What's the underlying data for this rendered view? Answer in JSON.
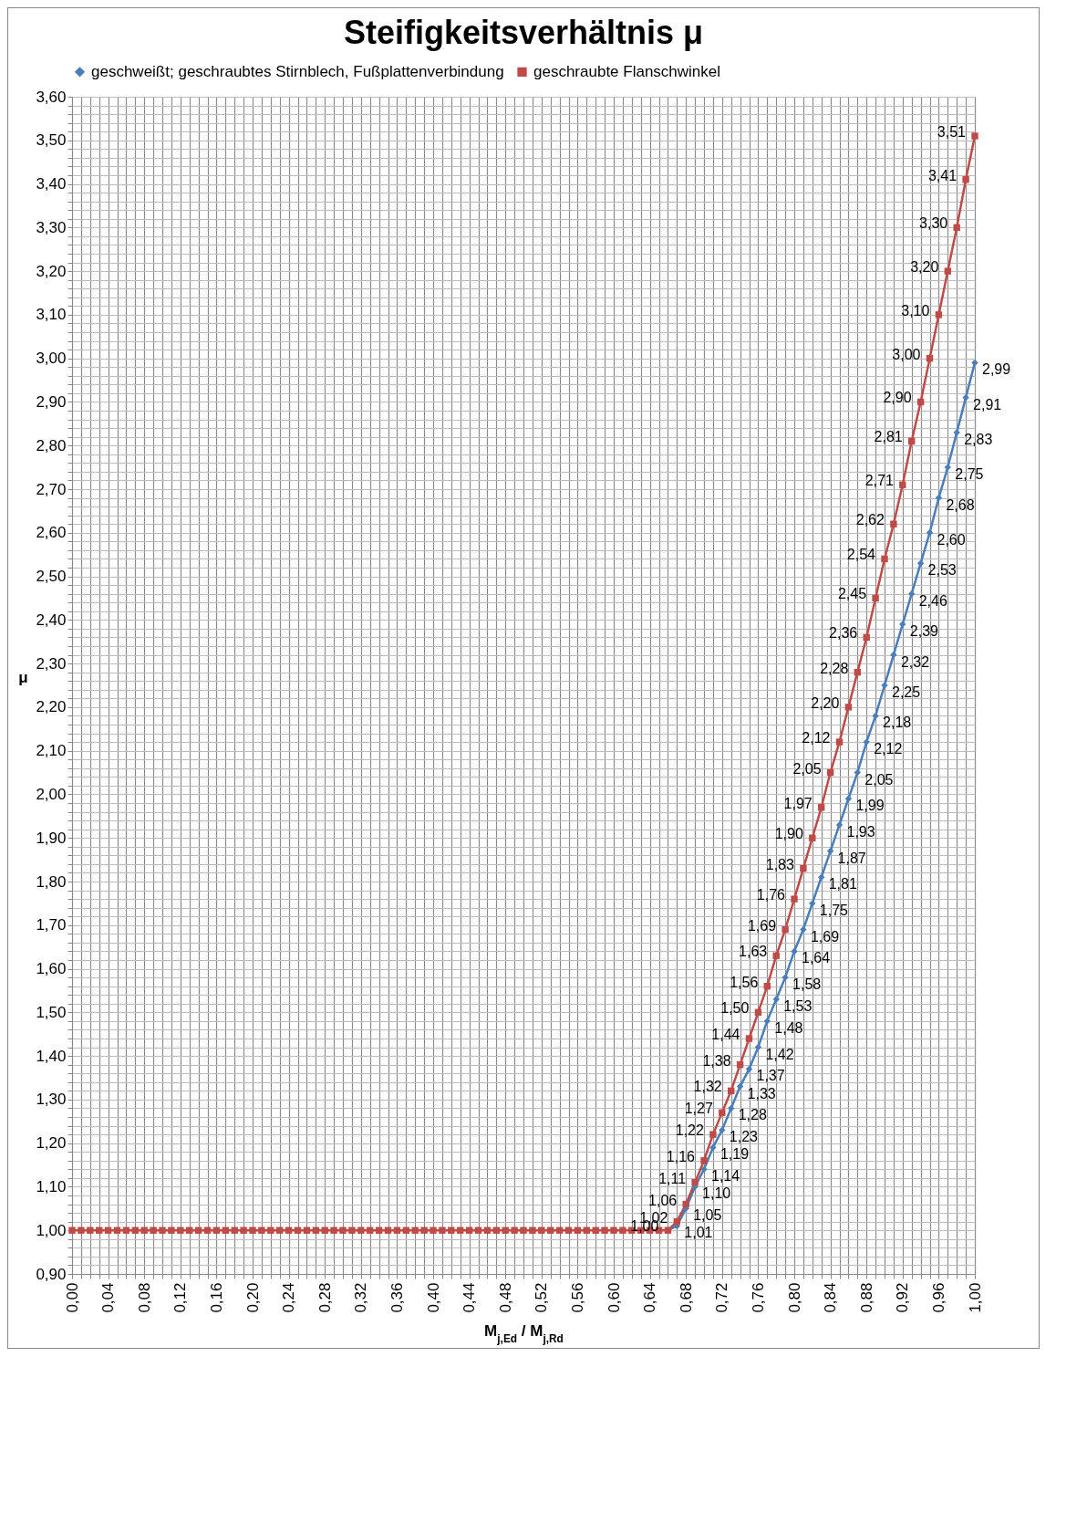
{
  "chart_data": {
    "type": "line",
    "title": "Steifigkeitsverhältnis μ",
    "xlabel": "M$_{j,Ed}$ / M$_{j,Rd}$",
    "ylabel": "μ",
    "x": [
      0,
      0.01,
      0.02,
      0.03,
      0.04,
      0.05,
      0.06,
      0.07,
      0.08,
      0.09,
      0.1,
      0.11,
      0.12,
      0.13,
      0.14,
      0.15,
      0.16,
      0.17,
      0.18,
      0.19,
      0.2,
      0.21,
      0.22,
      0.23,
      0.24,
      0.25,
      0.26,
      0.27,
      0.28,
      0.29,
      0.3,
      0.31,
      0.32,
      0.33,
      0.34,
      0.35,
      0.36,
      0.37,
      0.38,
      0.39,
      0.4,
      0.41,
      0.42,
      0.43,
      0.44,
      0.45,
      0.46,
      0.47,
      0.48,
      0.49,
      0.5,
      0.51,
      0.52,
      0.53,
      0.54,
      0.55,
      0.56,
      0.57,
      0.58,
      0.59,
      0.6,
      0.61,
      0.62,
      0.63,
      0.64,
      0.65,
      0.66,
      0.67,
      0.68,
      0.69,
      0.7,
      0.71,
      0.72,
      0.73,
      0.74,
      0.75,
      0.76,
      0.77,
      0.78,
      0.79,
      0.8,
      0.81,
      0.82,
      0.83,
      0.84,
      0.85,
      0.86,
      0.87,
      0.88,
      0.89,
      0.9,
      0.91,
      0.92,
      0.93,
      0.94,
      0.95,
      0.96,
      0.97,
      0.98,
      0.99,
      1
    ],
    "series": [
      {
        "name": "geschweißt; geschraubtes Stirnblech, Fußplattenverbindung",
        "color": "#4a7ebb",
        "marker": "diamond",
        "values": [
          null,
          null,
          null,
          null,
          null,
          null,
          null,
          null,
          null,
          null,
          null,
          null,
          null,
          null,
          null,
          null,
          null,
          null,
          null,
          null,
          null,
          null,
          null,
          null,
          null,
          null,
          null,
          null,
          null,
          null,
          null,
          null,
          null,
          null,
          null,
          null,
          null,
          null,
          null,
          null,
          null,
          null,
          null,
          null,
          null,
          null,
          null,
          null,
          null,
          null,
          null,
          null,
          null,
          null,
          null,
          null,
          null,
          null,
          null,
          null,
          null,
          null,
          null,
          null,
          null,
          null,
          1,
          1.01,
          1.05,
          1.1,
          1.14,
          1.19,
          1.23,
          1.28,
          1.33,
          1.37,
          1.42,
          1.48,
          1.53,
          1.58,
          1.64,
          1.69,
          1.75,
          1.81,
          1.87,
          1.93,
          1.99,
          2.05,
          2.12,
          2.18,
          2.25,
          2.32,
          2.39,
          2.46,
          2.53,
          2.6,
          2.68,
          2.75,
          2.83,
          2.91,
          2.99
        ],
        "value_labels": [
          null,
          null,
          null,
          null,
          null,
          null,
          null,
          null,
          null,
          null,
          null,
          null,
          null,
          null,
          null,
          null,
          null,
          null,
          null,
          null,
          null,
          null,
          null,
          null,
          null,
          null,
          null,
          null,
          null,
          null,
          null,
          null,
          null,
          null,
          null,
          null,
          null,
          null,
          null,
          null,
          null,
          null,
          null,
          null,
          null,
          null,
          null,
          null,
          null,
          null,
          null,
          null,
          null,
          null,
          null,
          null,
          null,
          null,
          null,
          null,
          null,
          null,
          null,
          null,
          null,
          null,
          null,
          "1,01",
          "1,05",
          "1,10",
          "1,14",
          "1,19",
          "1,23",
          "1,28",
          "1,33",
          "1,37",
          "1,42",
          "1,48",
          "1,53",
          "1,58",
          "1,64",
          "1,69",
          "1,75",
          "1,81",
          "1,87",
          "1,93",
          "1,99",
          "2,05",
          "2,12",
          "2,18",
          "2,25",
          "2,32",
          "2,39",
          "2,46",
          "2,53",
          "2,60",
          "2,68",
          "2,75",
          "2,83",
          "2,91",
          "2,99"
        ]
      },
      {
        "name": "geschraubte Flanschwinkel",
        "color": "#be4b48",
        "marker": "square",
        "values": [
          1,
          1,
          1,
          1,
          1,
          1,
          1,
          1,
          1,
          1,
          1,
          1,
          1,
          1,
          1,
          1,
          1,
          1,
          1,
          1,
          1,
          1,
          1,
          1,
          1,
          1,
          1,
          1,
          1,
          1,
          1,
          1,
          1,
          1,
          1,
          1,
          1,
          1,
          1,
          1,
          1,
          1,
          1,
          1,
          1,
          1,
          1,
          1,
          1,
          1,
          1,
          1,
          1,
          1,
          1,
          1,
          1,
          1,
          1,
          1,
          1,
          1,
          1,
          1,
          1,
          1,
          1,
          1.02,
          1.06,
          1.11,
          1.16,
          1.22,
          1.27,
          1.32,
          1.38,
          1.44,
          1.5,
          1.56,
          1.63,
          1.69,
          1.76,
          1.83,
          1.9,
          1.97,
          2.05,
          2.12,
          2.2,
          2.28,
          2.36,
          2.45,
          2.54,
          2.62,
          2.71,
          2.81,
          2.9,
          3.0,
          3.1,
          3.2,
          3.3,
          3.41,
          3.51
        ],
        "value_labels": [
          null,
          null,
          null,
          null,
          null,
          null,
          null,
          null,
          null,
          null,
          null,
          null,
          null,
          null,
          null,
          null,
          null,
          null,
          null,
          null,
          null,
          null,
          null,
          null,
          null,
          null,
          null,
          null,
          null,
          null,
          null,
          null,
          null,
          null,
          null,
          null,
          null,
          null,
          null,
          null,
          null,
          null,
          null,
          null,
          null,
          null,
          null,
          null,
          null,
          null,
          null,
          null,
          null,
          null,
          null,
          null,
          null,
          null,
          null,
          null,
          null,
          null,
          null,
          null,
          null,
          null,
          "1,00",
          "1,02",
          "1,06",
          "1,11",
          "1,16",
          "1,22",
          "1,27",
          "1,32",
          "1,38",
          "1,44",
          "1,50",
          "1,56",
          "1,63",
          "1,69",
          "1,76",
          "1,83",
          "1,90",
          "1,97",
          "2,05",
          "2,12",
          "2,20",
          "2,28",
          "2,36",
          "2,45",
          "2,54",
          "2,62",
          "2,71",
          "2,81",
          "2,90",
          "3,00",
          "3,10",
          "3,20",
          "3,30",
          "3,41",
          "3,51"
        ]
      }
    ],
    "xlim": [
      0,
      1
    ],
    "ylim": [
      0.9,
      3.6
    ],
    "xticks": [
      {
        "value": 0,
        "label": "0,00"
      },
      {
        "value": 0.01,
        "label": null
      },
      {
        "value": 0.02,
        "label": null
      },
      {
        "value": 0.03,
        "label": null
      },
      {
        "value": 0.04,
        "label": "0,04"
      },
      {
        "value": 0.05,
        "label": null
      },
      {
        "value": 0.06,
        "label": null
      },
      {
        "value": 0.07,
        "label": null
      },
      {
        "value": 0.08,
        "label": "0,08"
      },
      {
        "value": 0.09,
        "label": null
      },
      {
        "value": 0.1,
        "label": null
      },
      {
        "value": 0.11,
        "label": null
      },
      {
        "value": 0.12,
        "label": "0,12"
      },
      {
        "value": 0.13,
        "label": null
      },
      {
        "value": 0.14,
        "label": null
      },
      {
        "value": 0.15,
        "label": null
      },
      {
        "value": 0.16,
        "label": "0,16"
      },
      {
        "value": 0.17,
        "label": null
      },
      {
        "value": 0.18,
        "label": null
      },
      {
        "value": 0.19,
        "label": null
      },
      {
        "value": 0.2,
        "label": "0,20"
      },
      {
        "value": 0.21,
        "label": null
      },
      {
        "value": 0.22,
        "label": null
      },
      {
        "value": 0.23,
        "label": null
      },
      {
        "value": 0.24,
        "label": "0,24"
      },
      {
        "value": 0.25,
        "label": null
      },
      {
        "value": 0.26,
        "label": null
      },
      {
        "value": 0.27,
        "label": null
      },
      {
        "value": 0.28,
        "label": "0,28"
      },
      {
        "value": 0.29,
        "label": null
      },
      {
        "value": 0.3,
        "label": null
      },
      {
        "value": 0.31,
        "label": null
      },
      {
        "value": 0.32,
        "label": "0,32"
      },
      {
        "value": 0.33,
        "label": null
      },
      {
        "value": 0.34,
        "label": null
      },
      {
        "value": 0.35,
        "label": null
      },
      {
        "value": 0.36,
        "label": "0,36"
      },
      {
        "value": 0.37,
        "label": null
      },
      {
        "value": 0.38,
        "label": null
      },
      {
        "value": 0.39,
        "label": null
      },
      {
        "value": 0.4,
        "label": "0,40"
      },
      {
        "value": 0.41,
        "label": null
      },
      {
        "value": 0.42,
        "label": null
      },
      {
        "value": 0.43,
        "label": null
      },
      {
        "value": 0.44,
        "label": "0,44"
      },
      {
        "value": 0.45,
        "label": null
      },
      {
        "value": 0.46,
        "label": null
      },
      {
        "value": 0.47,
        "label": null
      },
      {
        "value": 0.48,
        "label": "0,48"
      },
      {
        "value": 0.49,
        "label": null
      },
      {
        "value": 0.5,
        "label": null
      },
      {
        "value": 0.51,
        "label": null
      },
      {
        "value": 0.52,
        "label": "0,52"
      },
      {
        "value": 0.53,
        "label": null
      },
      {
        "value": 0.54,
        "label": null
      },
      {
        "value": 0.55,
        "label": null
      },
      {
        "value": 0.56,
        "label": "0,56"
      },
      {
        "value": 0.57,
        "label": null
      },
      {
        "value": 0.58,
        "label": null
      },
      {
        "value": 0.59,
        "label": null
      },
      {
        "value": 0.6,
        "label": "0,60"
      },
      {
        "value": 0.61,
        "label": null
      },
      {
        "value": 0.62,
        "label": null
      },
      {
        "value": 0.63,
        "label": null
      },
      {
        "value": 0.64,
        "label": "0,64"
      },
      {
        "value": 0.65,
        "label": null
      },
      {
        "value": 0.66,
        "label": null
      },
      {
        "value": 0.67,
        "label": null
      },
      {
        "value": 0.68,
        "label": "0,68"
      },
      {
        "value": 0.69,
        "label": null
      },
      {
        "value": 0.7,
        "label": null
      },
      {
        "value": 0.71,
        "label": null
      },
      {
        "value": 0.72,
        "label": "0,72"
      },
      {
        "value": 0.73,
        "label": null
      },
      {
        "value": 0.74,
        "label": null
      },
      {
        "value": 0.75,
        "label": null
      },
      {
        "value": 0.76,
        "label": "0,76"
      },
      {
        "value": 0.77,
        "label": null
      },
      {
        "value": 0.78,
        "label": null
      },
      {
        "value": 0.79,
        "label": null
      },
      {
        "value": 0.8,
        "label": "0,80"
      },
      {
        "value": 0.81,
        "label": null
      },
      {
        "value": 0.82,
        "label": null
      },
      {
        "value": 0.83,
        "label": null
      },
      {
        "value": 0.84,
        "label": "0,84"
      },
      {
        "value": 0.85,
        "label": null
      },
      {
        "value": 0.86,
        "label": null
      },
      {
        "value": 0.87,
        "label": null
      },
      {
        "value": 0.88,
        "label": "0,88"
      },
      {
        "value": 0.89,
        "label": null
      },
      {
        "value": 0.9,
        "label": null
      },
      {
        "value": 0.91,
        "label": null
      },
      {
        "value": 0.92,
        "label": "0,92"
      },
      {
        "value": 0.93,
        "label": null
      },
      {
        "value": 0.94,
        "label": null
      },
      {
        "value": 0.95,
        "label": null
      },
      {
        "value": 0.96,
        "label": "0,96"
      },
      {
        "value": 0.97,
        "label": null
      },
      {
        "value": 0.98,
        "label": null
      },
      {
        "value": 0.99,
        "label": null
      },
      {
        "value": 1,
        "label": "1,00"
      }
    ],
    "yticks": [
      {
        "value": 0.9,
        "label": "0,90"
      },
      {
        "value": 0.92,
        "label": null
      },
      {
        "value": 0.94,
        "label": null
      },
      {
        "value": 0.96,
        "label": null
      },
      {
        "value": 0.98,
        "label": null
      },
      {
        "value": 1,
        "label": "1,00"
      },
      {
        "value": 1.02,
        "label": null
      },
      {
        "value": 1.04,
        "label": null
      },
      {
        "value": 1.06,
        "label": null
      },
      {
        "value": 1.08,
        "label": null
      },
      {
        "value": 1.1,
        "label": "1,10"
      },
      {
        "value": 1.12,
        "label": null
      },
      {
        "value": 1.14,
        "label": null
      },
      {
        "value": 1.16,
        "label": null
      },
      {
        "value": 1.18,
        "label": null
      },
      {
        "value": 1.2,
        "label": "1,20"
      },
      {
        "value": 1.22,
        "label": null
      },
      {
        "value": 1.24,
        "label": null
      },
      {
        "value": 1.26,
        "label": null
      },
      {
        "value": 1.28,
        "label": null
      },
      {
        "value": 1.3,
        "label": "1,30"
      },
      {
        "value": 1.32,
        "label": null
      },
      {
        "value": 1.34,
        "label": null
      },
      {
        "value": 1.36,
        "label": null
      },
      {
        "value": 1.38,
        "label": null
      },
      {
        "value": 1.4,
        "label": "1,40"
      },
      {
        "value": 1.42,
        "label": null
      },
      {
        "value": 1.44,
        "label": null
      },
      {
        "value": 1.46,
        "label": null
      },
      {
        "value": 1.48,
        "label": null
      },
      {
        "value": 1.5,
        "label": "1,50"
      },
      {
        "value": 1.52,
        "label": null
      },
      {
        "value": 1.54,
        "label": null
      },
      {
        "value": 1.56,
        "label": null
      },
      {
        "value": 1.58,
        "label": null
      },
      {
        "value": 1.6,
        "label": "1,60"
      },
      {
        "value": 1.62,
        "label": null
      },
      {
        "value": 1.64,
        "label": null
      },
      {
        "value": 1.66,
        "label": null
      },
      {
        "value": 1.68,
        "label": null
      },
      {
        "value": 1.7,
        "label": "1,70"
      },
      {
        "value": 1.72,
        "label": null
      },
      {
        "value": 1.74,
        "label": null
      },
      {
        "value": 1.76,
        "label": null
      },
      {
        "value": 1.78,
        "label": null
      },
      {
        "value": 1.8,
        "label": "1,80"
      },
      {
        "value": 1.82,
        "label": null
      },
      {
        "value": 1.84,
        "label": null
      },
      {
        "value": 1.86,
        "label": null
      },
      {
        "value": 1.88,
        "label": null
      },
      {
        "value": 1.9,
        "label": "1,90"
      },
      {
        "value": 1.92,
        "label": null
      },
      {
        "value": 1.94,
        "label": null
      },
      {
        "value": 1.96,
        "label": null
      },
      {
        "value": 1.98,
        "label": null
      },
      {
        "value": 2,
        "label": "2,00"
      },
      {
        "value": 2.02,
        "label": null
      },
      {
        "value": 2.04,
        "label": null
      },
      {
        "value": 2.06,
        "label": null
      },
      {
        "value": 2.08,
        "label": null
      },
      {
        "value": 2.1,
        "label": "2,10"
      },
      {
        "value": 2.12,
        "label": null
      },
      {
        "value": 2.14,
        "label": null
      },
      {
        "value": 2.16,
        "label": null
      },
      {
        "value": 2.18,
        "label": null
      },
      {
        "value": 2.2,
        "label": "2,20"
      },
      {
        "value": 2.22,
        "label": null
      },
      {
        "value": 2.24,
        "label": null
      },
      {
        "value": 2.26,
        "label": null
      },
      {
        "value": 2.28,
        "label": null
      },
      {
        "value": 2.3,
        "label": "2,30"
      },
      {
        "value": 2.32,
        "label": null
      },
      {
        "value": 2.34,
        "label": null
      },
      {
        "value": 2.36,
        "label": null
      },
      {
        "value": 2.38,
        "label": null
      },
      {
        "value": 2.4,
        "label": "2,40"
      },
      {
        "value": 2.42,
        "label": null
      },
      {
        "value": 2.44,
        "label": null
      },
      {
        "value": 2.46,
        "label": null
      },
      {
        "value": 2.48,
        "label": null
      },
      {
        "value": 2.5,
        "label": "2,50"
      },
      {
        "value": 2.52,
        "label": null
      },
      {
        "value": 2.54,
        "label": null
      },
      {
        "value": 2.56,
        "label": null
      },
      {
        "value": 2.58,
        "label": null
      },
      {
        "value": 2.6,
        "label": "2,60"
      },
      {
        "value": 2.62,
        "label": null
      },
      {
        "value": 2.64,
        "label": null
      },
      {
        "value": 2.66,
        "label": null
      },
      {
        "value": 2.68,
        "label": null
      },
      {
        "value": 2.7,
        "label": "2,70"
      },
      {
        "value": 2.72,
        "label": null
      },
      {
        "value": 2.74,
        "label": null
      },
      {
        "value": 2.76,
        "label": null
      },
      {
        "value": 2.78,
        "label": null
      },
      {
        "value": 2.8,
        "label": "2,80"
      },
      {
        "value": 2.82,
        "label": null
      },
      {
        "value": 2.84,
        "label": null
      },
      {
        "value": 2.86,
        "label": null
      },
      {
        "value": 2.88,
        "label": null
      },
      {
        "value": 2.9,
        "label": "2,90"
      },
      {
        "value": 2.92,
        "label": null
      },
      {
        "value": 2.94,
        "label": null
      },
      {
        "value": 2.96,
        "label": null
      },
      {
        "value": 2.98,
        "label": null
      },
      {
        "value": 3,
        "label": "3,00"
      },
      {
        "value": 3.02,
        "label": null
      },
      {
        "value": 3.04,
        "label": null
      },
      {
        "value": 3.06,
        "label": null
      },
      {
        "value": 3.08,
        "label": null
      },
      {
        "value": 3.1,
        "label": "3,10"
      },
      {
        "value": 3.12,
        "label": null
      },
      {
        "value": 3.14,
        "label": null
      },
      {
        "value": 3.16,
        "label": null
      },
      {
        "value": 3.18,
        "label": null
      },
      {
        "value": 3.2,
        "label": "3,20"
      },
      {
        "value": 3.22,
        "label": null
      },
      {
        "value": 3.24,
        "label": null
      },
      {
        "value": 3.26,
        "label": null
      },
      {
        "value": 3.28,
        "label": null
      },
      {
        "value": 3.3,
        "label": "3,30"
      },
      {
        "value": 3.32,
        "label": null
      },
      {
        "value": 3.34,
        "label": null
      },
      {
        "value": 3.36,
        "label": null
      },
      {
        "value": 3.38,
        "label": null
      },
      {
        "value": 3.4,
        "label": "3,40"
      },
      {
        "value": 3.42,
        "label": null
      },
      {
        "value": 3.44,
        "label": null
      },
      {
        "value": 3.46,
        "label": null
      },
      {
        "value": 3.48,
        "label": null
      },
      {
        "value": 3.5,
        "label": "3,50"
      },
      {
        "value": 3.52,
        "label": null
      },
      {
        "value": 3.54,
        "label": null
      },
      {
        "value": 3.56,
        "label": null
      },
      {
        "value": 3.58,
        "label": null
      },
      {
        "value": 3.6,
        "label": "3,60"
      }
    ],
    "grid": true,
    "legend": "top",
    "line_style": "solid"
  }
}
